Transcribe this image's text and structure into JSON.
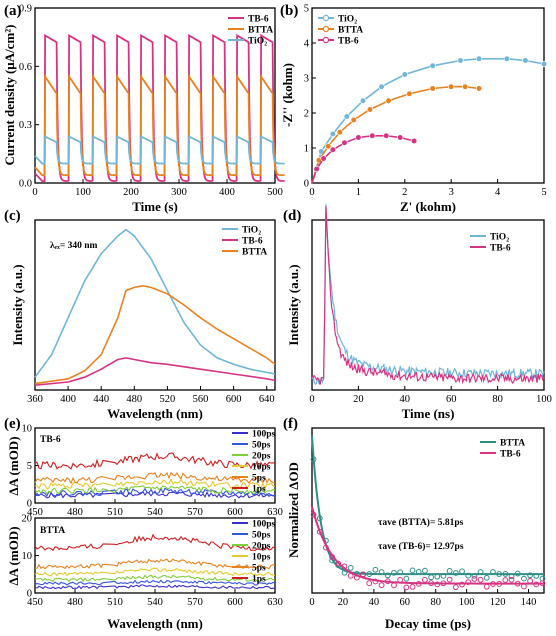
{
  "chart_data": [
    {
      "panel": "(a)",
      "type": "line",
      "xlabel": "Time (s)",
      "ylabel": "Current density (μA/cm²)",
      "xlim": [
        0,
        500
      ],
      "ylim": [
        0,
        0.9
      ],
      "xticks": [
        "0",
        "100",
        "200",
        "300",
        "400",
        "500"
      ],
      "yticks": [
        "0.0",
        "0.3",
        "0.6",
        "0.9"
      ],
      "legend_position": "top-right",
      "light_on_off_cycles": 10,
      "series": [
        {
          "name": "TB-6",
          "color": "#d63384",
          "on_peak": 0.76,
          "on_steady": 0.7,
          "dark": 0.01
        },
        {
          "name": "BTTA",
          "color": "#e8821f",
          "on_peak": 0.55,
          "on_steady": 0.4,
          "dark": 0.04
        },
        {
          "name": "TiO₂",
          "color": "#6fb6d9",
          "on_peak": 0.24,
          "on_steady": 0.19,
          "dark": 0.1
        }
      ]
    },
    {
      "panel": "(b)",
      "type": "scatter",
      "xlabel": "Z' (kohm)",
      "ylabel": "-Z'' (kohm)",
      "xlim": [
        0,
        5
      ],
      "ylim": [
        0,
        5
      ],
      "xticks": [
        "0",
        "1",
        "2",
        "3",
        "4",
        "5"
      ],
      "yticks": [
        "0",
        "1",
        "2",
        "3",
        "4",
        "5"
      ],
      "legend_position": "top-left",
      "series": [
        {
          "name": "TiO₂",
          "color": "#6fb6d9",
          "x": [
            0,
            0.2,
            0.45,
            0.75,
            1.1,
            1.5,
            2.0,
            2.6,
            3.2,
            3.6,
            4.2,
            4.6,
            5.0
          ],
          "y": [
            0,
            0.9,
            1.4,
            1.9,
            2.35,
            2.75,
            3.1,
            3.35,
            3.5,
            3.55,
            3.55,
            3.5,
            3.4
          ]
        },
        {
          "name": "BTTA",
          "color": "#e8821f",
          "x": [
            0,
            0.15,
            0.35,
            0.6,
            0.9,
            1.25,
            1.65,
            2.1,
            2.6,
            3.0,
            3.3,
            3.6
          ],
          "y": [
            0,
            0.65,
            1.05,
            1.45,
            1.8,
            2.1,
            2.35,
            2.55,
            2.7,
            2.75,
            2.75,
            2.7
          ]
        },
        {
          "name": "TB-6",
          "color": "#d63384",
          "x": [
            0,
            0.1,
            0.25,
            0.45,
            0.7,
            1.0,
            1.3,
            1.6,
            1.9,
            2.2
          ],
          "y": [
            0,
            0.4,
            0.7,
            0.95,
            1.15,
            1.3,
            1.35,
            1.35,
            1.3,
            1.2
          ]
        }
      ]
    },
    {
      "panel": "(c)",
      "type": "line",
      "xlabel": "Wavelength (nm)",
      "ylabel": "Intensity (a.u.)",
      "annotation": "λₑₓ= 340 nm",
      "xlim": [
        360,
        650
      ],
      "xticks": [
        "360",
        "400",
        "440",
        "480",
        "520",
        "560",
        "600",
        "640"
      ],
      "legend_position": "top-right",
      "series": [
        {
          "name": "TiO₂",
          "color": "#6fb6d9",
          "x": [
            360,
            380,
            400,
            420,
            440,
            460,
            470,
            480,
            500,
            520,
            540,
            560,
            580,
            600,
            620,
            640,
            650
          ],
          "y": [
            0.08,
            0.22,
            0.45,
            0.68,
            0.85,
            0.96,
            1.0,
            0.96,
            0.82,
            0.62,
            0.42,
            0.28,
            0.2,
            0.16,
            0.13,
            0.11,
            0.1
          ]
        },
        {
          "name": "TB-6",
          "color": "#d63384",
          "x": [
            360,
            400,
            420,
            440,
            460,
            470,
            480,
            500,
            520,
            560,
            600,
            640,
            650
          ],
          "y": [
            0.03,
            0.05,
            0.08,
            0.13,
            0.19,
            0.2,
            0.19,
            0.17,
            0.16,
            0.13,
            0.1,
            0.07,
            0.06
          ]
        },
        {
          "name": "BTTA",
          "color": "#e8821f",
          "x": [
            360,
            400,
            420,
            440,
            460,
            470,
            480,
            490,
            500,
            520,
            540,
            560,
            580,
            600,
            620,
            640,
            650
          ],
          "y": [
            0.04,
            0.07,
            0.12,
            0.22,
            0.45,
            0.62,
            0.64,
            0.65,
            0.64,
            0.6,
            0.53,
            0.45,
            0.38,
            0.32,
            0.26,
            0.2,
            0.16
          ]
        }
      ]
    },
    {
      "panel": "(d)",
      "type": "line",
      "xlabel": "Time (ns)",
      "ylabel": "Intensity (a.u.)",
      "xlim": [
        0,
        100
      ],
      "xticks": [
        "0",
        "20",
        "40",
        "60",
        "80",
        "100"
      ],
      "legend_position": "top-right",
      "series": [
        {
          "name": "TiO₂",
          "color": "#6fb6d9",
          "peak_time": 6,
          "baseline": 0.1,
          "background": 0.06
        },
        {
          "name": "TB-6",
          "color": "#d63384",
          "peak_time": 6,
          "baseline": 0.07,
          "background": 0.06
        }
      ]
    },
    {
      "panel": "(e)",
      "type": "line",
      "ylabel": "ΔA (mOD)",
      "xlabel": "Wavelength (nm)",
      "xlim": [
        450,
        630
      ],
      "xticks": [
        "450",
        "480",
        "510",
        "540",
        "570",
        "600",
        "630"
      ],
      "subplots": [
        {
          "title": "TB-6",
          "yticks": [
            "0",
            "5",
            "10"
          ],
          "ylim": [
            0,
            10
          ]
        },
        {
          "title": "BTTA",
          "yticks": [
            "0",
            "10",
            "20"
          ],
          "ylim": [
            0,
            20
          ]
        }
      ],
      "legend_position": "top-right",
      "series": [
        {
          "name": "100ps",
          "color": "#3b2fc9"
        },
        {
          "name": "50ps",
          "color": "#3355dd"
        },
        {
          "name": "20ps",
          "color": "#7fcf3a"
        },
        {
          "name": "10ps",
          "color": "#e6c92e"
        },
        {
          "name": "5ps",
          "color": "#e8821f"
        },
        {
          "name": "1ps",
          "color": "#cc1f1f"
        }
      ],
      "tb6_levels": {
        "100ps": 1.0,
        "50ps": 1.3,
        "20ps": 1.6,
        "10ps": 2.3,
        "5ps": 3.0,
        "1ps": 5.0
      },
      "btta_levels": {
        "100ps": 1.5,
        "50ps": 2.5,
        "20ps": 3.5,
        "10ps": 5.0,
        "5ps": 7.0,
        "1ps": 12.0
      }
    },
    {
      "panel": "(f)",
      "type": "scatter",
      "xlabel": "Decay time (ps)",
      "ylabel": "Normalized ΔOD",
      "xlim": [
        0,
        150
      ],
      "xticks": [
        "0",
        "20",
        "40",
        "60",
        "80",
        "100",
        "120",
        "140"
      ],
      "legend_position": "top-right",
      "annotations": [
        "τave (BTTA)= 5.81ps",
        "τave (TB-6)= 12.97ps"
      ],
      "series": [
        {
          "name": "BTTA",
          "color": "#2e8f87",
          "tau": 5.81,
          "start": 1.0,
          "plateau": 0.12
        },
        {
          "name": "TB-6",
          "color": "#d63384",
          "tau": 12.97,
          "start": 0.55,
          "plateau": 0.06
        }
      ]
    }
  ],
  "labels": {
    "a": "(a)",
    "b": "(b)",
    "c": "(c)",
    "d": "(d)",
    "e": "(e)",
    "f": "(f)",
    "a_xlabel": "Time (s)",
    "a_ylabel": "Current density (μA/cm²)",
    "b_xlabel": "Z' (kohm)",
    "b_ylabel": "-Z'' (kohm)",
    "c_xlabel": "Wavelength (nm)",
    "c_ylabel": "Intensity (a.u.)",
    "c_annot": "λₑₓ= 340 nm",
    "d_xlabel": "Time (ns)",
    "d_ylabel": "Intensity (a.u.)",
    "e_xlabel": "Wavelength (nm)",
    "e_ylabel_top": "ΔA (mOD)",
    "e_ylabel_bottom": "ΔA (mOD)",
    "e_title_top": "TB-6",
    "e_title_bottom": "BTTA",
    "f_xlabel": "Decay time (ps)",
    "f_ylabel": "Normalized ΔOD",
    "f_annot1": "τave (BTTA)= 5.81ps",
    "f_annot2": "τave (TB-6)= 12.97ps"
  }
}
